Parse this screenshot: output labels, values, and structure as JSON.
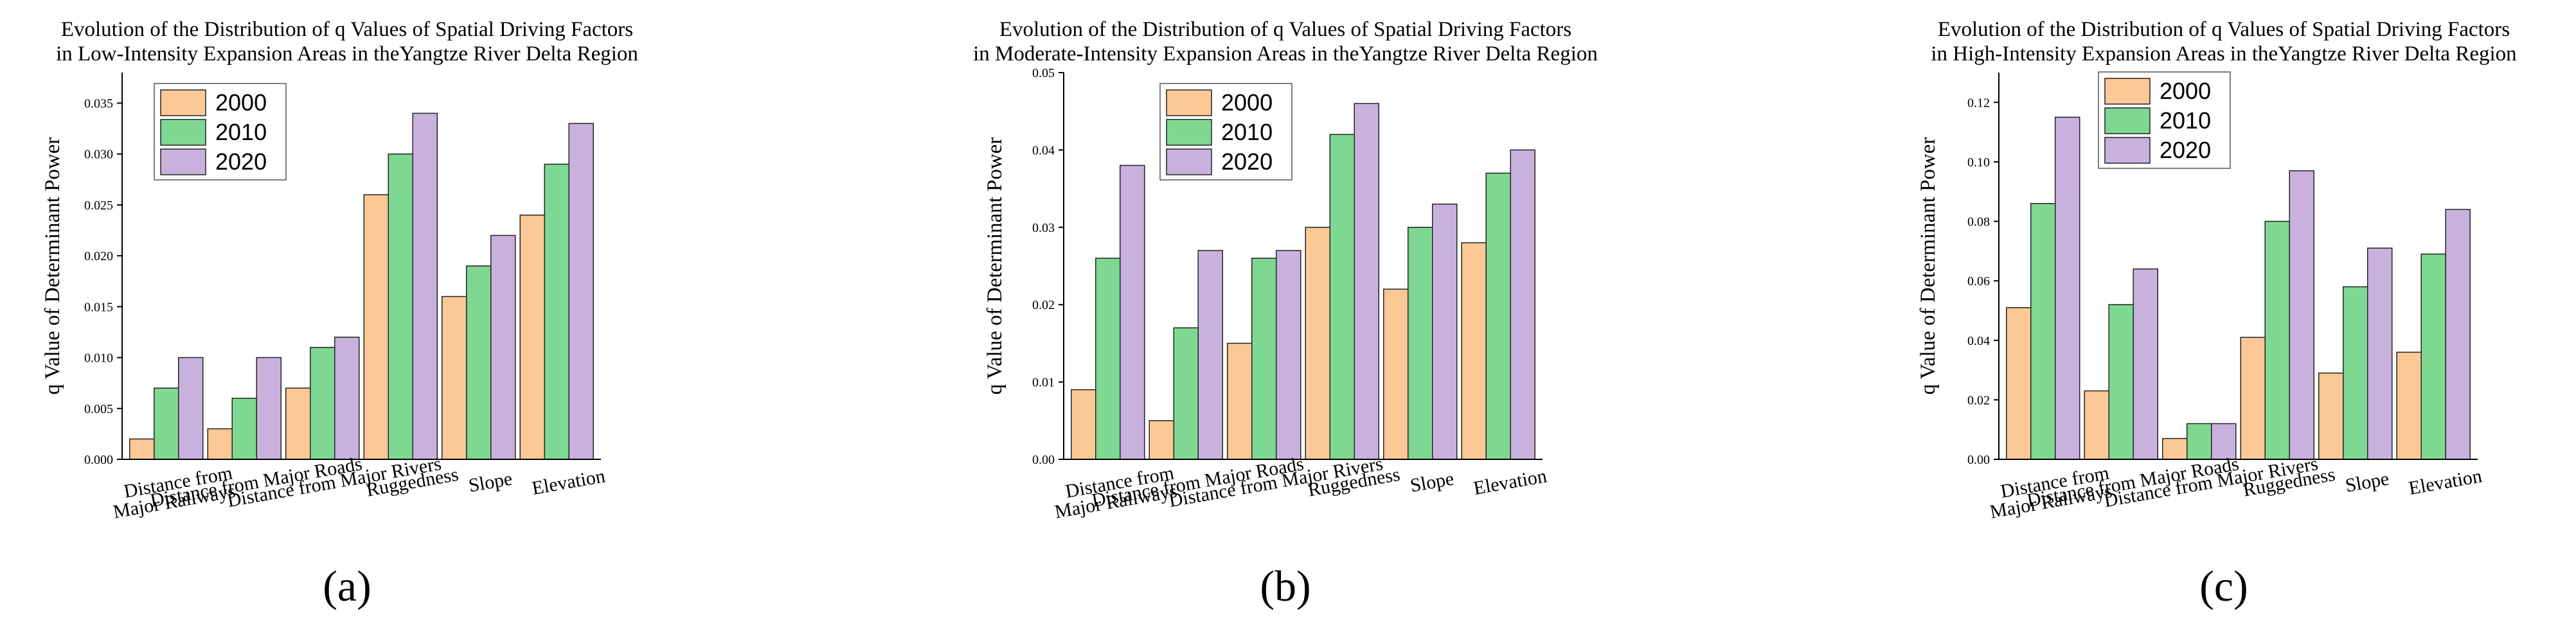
{
  "colors": {
    "2000": "#fcc896",
    "2010": "#7fd891",
    "2020": "#c8b2dd",
    "axis": "#000000"
  },
  "chart_data": [
    {
      "type": "bar",
      "panel_label": "(a)",
      "title": [
        "Evolution of the Distribution of q Values of Spatial Driving Factors",
        "in Low-Intensity Expansion Areas in theYangtze River Delta Region"
      ],
      "xlabel": "",
      "ylabel": "q Value of Determinant Power",
      "ylim": [
        0,
        0.038
      ],
      "yticks": [
        "0.000",
        "0.005",
        "0.010",
        "0.015",
        "0.020",
        "0.025",
        "0.030",
        "0.035"
      ],
      "categories": [
        [
          "Distance from",
          "Major Railways"
        ],
        [
          "Distance from Major Roads"
        ],
        [
          "Distance from Major Rivers"
        ],
        [
          "Ruggedness"
        ],
        [
          "Slope"
        ],
        [
          "Elevation"
        ]
      ],
      "legend": {
        "position": "top-left",
        "entries": [
          "2000",
          "2010",
          "2020"
        ]
      },
      "series": [
        {
          "name": "2000",
          "values": [
            0.002,
            0.003,
            0.007,
            0.026,
            0.016,
            0.024
          ]
        },
        {
          "name": "2010",
          "values": [
            0.007,
            0.006,
            0.011,
            0.03,
            0.019,
            0.029
          ]
        },
        {
          "name": "2020",
          "values": [
            0.01,
            0.01,
            0.012,
            0.034,
            0.022,
            0.033
          ]
        }
      ]
    },
    {
      "type": "bar",
      "panel_label": "(b)",
      "title": [
        "Evolution of the Distribution of q Values of Spatial Driving Factors",
        "in Moderate-Intensity Expansion Areas in theYangtze River Delta Region"
      ],
      "xlabel": "",
      "ylabel": "q Value of Determinant Power",
      "ylim": [
        0,
        0.05
      ],
      "yticks": [
        "0.00",
        "0.01",
        "0.02",
        "0.03",
        "0.04",
        "0.05"
      ],
      "categories": [
        [
          "Distance from",
          "Major Railways"
        ],
        [
          "Distance from Major Roads"
        ],
        [
          "Distance from Major Rivers"
        ],
        [
          "Ruggedness"
        ],
        [
          "Slope"
        ],
        [
          "Elevation"
        ]
      ],
      "legend": {
        "position": "top-center",
        "entries": [
          "2000",
          "2010",
          "2020"
        ]
      },
      "series": [
        {
          "name": "2000",
          "values": [
            0.009,
            0.005,
            0.015,
            0.03,
            0.022,
            0.028
          ]
        },
        {
          "name": "2010",
          "values": [
            0.026,
            0.017,
            0.026,
            0.042,
            0.03,
            0.037
          ]
        },
        {
          "name": "2020",
          "values": [
            0.038,
            0.027,
            0.027,
            0.046,
            0.033,
            0.04
          ]
        }
      ]
    },
    {
      "type": "bar",
      "panel_label": "(c)",
      "title": [
        "Evolution of the Distribution of q Values of Spatial Driving Factors",
        "in High-Intensity Expansion Areas in theYangtze River Delta Region"
      ],
      "xlabel": "",
      "ylabel": "q Value of Determinant Power",
      "ylim": [
        0,
        0.13
      ],
      "yticks": [
        "0.00",
        "0.02",
        "0.04",
        "0.06",
        "0.08",
        "0.10",
        "0.12"
      ],
      "categories": [
        [
          "Distance from",
          "Major Railways"
        ],
        [
          "Distance from Major Roads"
        ],
        [
          "Distance from Major Rivers"
        ],
        [
          "Ruggedness"
        ],
        [
          "Slope"
        ],
        [
          "Elevation"
        ]
      ],
      "legend": {
        "position": "top-center",
        "entries": [
          "2000",
          "2010",
          "2020"
        ]
      },
      "series": [
        {
          "name": "2000",
          "values": [
            0.051,
            0.023,
            0.007,
            0.041,
            0.029,
            0.036
          ]
        },
        {
          "name": "2010",
          "values": [
            0.086,
            0.052,
            0.012,
            0.08,
            0.058,
            0.069
          ]
        },
        {
          "name": "2020",
          "values": [
            0.115,
            0.064,
            0.012,
            0.097,
            0.071,
            0.084
          ]
        }
      ]
    }
  ]
}
